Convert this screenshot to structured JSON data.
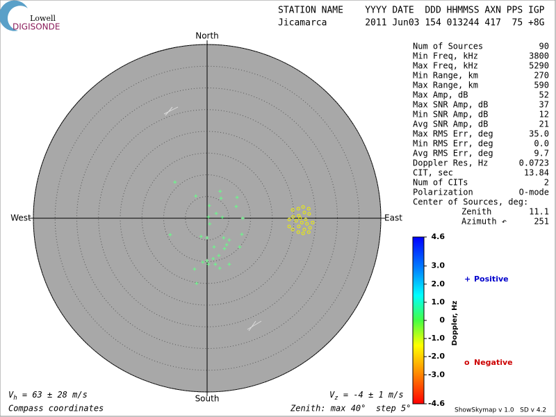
{
  "logo": {
    "top": "Lowell",
    "bottom": "DIGISONDE"
  },
  "header": {
    "labels": "STATION NAME    YYYY DATE  DDD HHMMSS AXN PPS IGP",
    "values": "Jicamarca       2011 Jun03 154 013244 417  75 +8G"
  },
  "stats": {
    "rows": [
      [
        "Num of Sources",
        "90"
      ],
      [
        "Min Freq, kHz",
        "3800"
      ],
      [
        "Max Freq, kHz",
        "5290"
      ],
      [
        "Min Range, km",
        "270"
      ],
      [
        "Max Range, km",
        "590"
      ],
      [
        "Max Amp, dB",
        "52"
      ],
      [
        "Max SNR Amp, dB",
        "37"
      ],
      [
        "Min SNR Amp, dB",
        "12"
      ],
      [
        "Avg SNR Amp, dB",
        "21"
      ],
      [
        "Max RMS Err, deg",
        "35.0"
      ],
      [
        "Min RMS Err, deg",
        "0.0"
      ],
      [
        "Avg RMS Err, deg",
        "9.7"
      ],
      [
        "Doppler Res, Hz",
        "0.0723"
      ],
      [
        "CIT, sec",
        "13.84"
      ],
      [
        "Num of CITs",
        "2"
      ],
      [
        "Polarization",
        "O-mode"
      ]
    ],
    "center_title": "Center of Sources, deg:",
    "center_rows": [
      [
        "Zenith",
        "11.1"
      ],
      [
        "Azimuth ↶",
        "251"
      ]
    ]
  },
  "footer": {
    "vh": [
      "V",
      "h",
      " = 63 ± 28 m/s"
    ],
    "vz": [
      "V",
      "z",
      " = -4 ± 1 m/s"
    ],
    "coords": "Compass coordinates",
    "zenith": "Zenith: max 40°  step 5°",
    "version": "ShowSkymap v 1.0   SD v 4.2"
  },
  "chart_data": {
    "type": "scatter",
    "compass": {
      "north": "North",
      "south": "South",
      "east": "East",
      "west": "West"
    },
    "rlim": [
      0,
      40
    ],
    "rticks": [
      5,
      10,
      15,
      20,
      25,
      30,
      35,
      40
    ],
    "series": [
      {
        "name": "Positive",
        "marker": "+",
        "color": "#66ff88",
        "x": [
          -7.4,
          -2.6,
          3.0,
          3.2,
          6.9,
          6.7,
          0.5,
          2.1,
          0.3,
          0.6,
          3.5,
          8.2,
          -8.5,
          -1.4,
          0,
          3.8,
          5.1,
          4.5,
          4.0,
          8.0,
          7.5,
          2.7,
          1.4,
          0,
          0.3,
          -1.0,
          1.9,
          5.1,
          -2.9,
          2.9,
          -2.4,
          1.6
        ],
        "y": [
          8.3,
          5.1,
          6.2,
          4.6,
          4.8,
          2.7,
          2.9,
          1.1,
          0.3,
          -1.3,
          0.2,
          0,
          -3.8,
          -4.2,
          -4.5,
          -4.5,
          -5.0,
          -6.1,
          -7.0,
          -3.7,
          -6.6,
          -8.6,
          -9.3,
          -9.8,
          -10.6,
          -10.1,
          -10.6,
          -10.6,
          -11.7,
          -11.5,
          -15.0,
          -6.6
        ]
      },
      {
        "name": "Negative",
        "marker": "o",
        "color": "#f0f000",
        "x": [
          19.7,
          21.0,
          22.1,
          23.4,
          23.5,
          22.4,
          21.1,
          19.8,
          18.9,
          20.5,
          21.8,
          23.0,
          24.3,
          23.7,
          22.4,
          21.1,
          19.7,
          21.0,
          22.1,
          23.4,
          18.9,
          21.4,
          22.7
        ],
        "y": [
          1.9,
          2.2,
          2.6,
          2.2,
          1.0,
          1.3,
          0.6,
          0.3,
          -0.3,
          -0.6,
          -1.0,
          -1.3,
          -1.0,
          -2.2,
          -2.6,
          -1.9,
          -2.6,
          -3.2,
          -3.5,
          -3.2,
          -1.9,
          0,
          -0.3
        ]
      }
    ],
    "colorbar": {
      "label": "Doppler, Hz",
      "lim": [
        -4.6,
        4.6
      ],
      "ticks": [
        4.6,
        {
          "value": 3,
          "label": "3.0"
        },
        {
          "value": 2,
          "label": "2.0"
        },
        {
          "value": 1,
          "label": "1.0"
        },
        0,
        {
          "value": -1,
          "label": "-1.0"
        },
        {
          "value": -2,
          "label": "-2.0"
        },
        {
          "value": -3,
          "label": "-3.0"
        },
        -4.6
      ]
    }
  }
}
